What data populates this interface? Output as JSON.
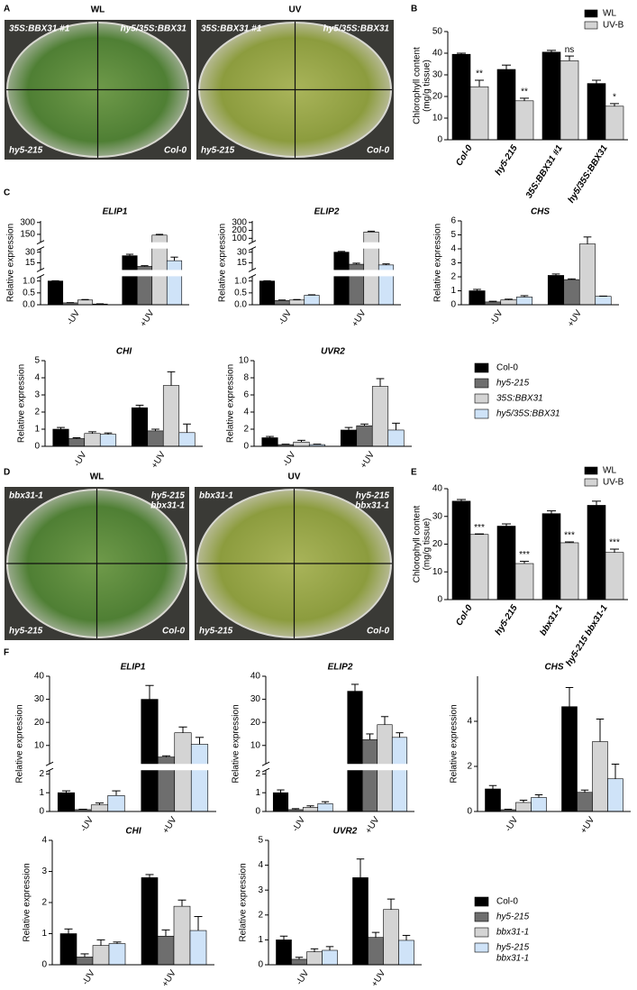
{
  "panel_labels": [
    "A",
    "B",
    "C",
    "D",
    "E",
    "F"
  ],
  "photos": [
    {
      "plates": [
        {
          "title": "WL",
          "quadrants": [
            "35S:BBX31 #1",
            "hy5/35S:BBX31",
            "hy5-215",
            "Col-0"
          ]
        },
        {
          "title": "UV",
          "quadrants": [
            "35S:BBX31 #1",
            "hy5/35S:BBX31",
            "hy5-215",
            "Col-0"
          ]
        }
      ]
    },
    {
      "plates": [
        {
          "title": "WL",
          "quadrants": [
            "bbx31-1",
            [
              "hy5-215",
              "bbx31-1"
            ],
            "hy5-215",
            "Col-0"
          ]
        },
        {
          "title": "UV",
          "quadrants": [
            "bbx31-1",
            [
              "hy5-215",
              "bbx31-1"
            ],
            "hy5-215",
            "Col-0"
          ]
        }
      ]
    }
  ],
  "chart_data": [
    {
      "type": "bar",
      "y_label": [
        "Chlorophyll content",
        "(mg/g tissue)"
      ],
      "categories": [
        "Col-0",
        "hy5-215",
        "35S:BBX31 #1",
        "hy5/35S:BBX31"
      ],
      "ylim": [
        0,
        50
      ],
      "yticks": [
        0,
        10,
        20,
        30,
        40,
        50
      ],
      "series": [
        {
          "name": "WL",
          "color": "#000000",
          "values": [
            39.5,
            32.5,
            40.5,
            26
          ],
          "errors": [
            0.5,
            2,
            0.8,
            1.5
          ]
        },
        {
          "name": "UV-B",
          "color": "#d4d4d4",
          "values": [
            24.5,
            18,
            36.5,
            15.5
          ],
          "errors": [
            3,
            1.2,
            2.2,
            1.2
          ],
          "annotations": [
            "**",
            "**",
            "ns",
            "*"
          ]
        }
      ]
    },
    {
      "type": "bar",
      "title": "ELIP1",
      "y_label": "Relative expression",
      "categories": [
        "-UV",
        "+UV"
      ],
      "axis_segments": [
        {
          "ylim": [
            0,
            1.2
          ],
          "yticks": [
            {
              "value": 0,
              "label": "0.0"
            },
            {
              "value": 0.5,
              "label": "0.5"
            },
            {
              "value": 1,
              "label": "1.0"
            }
          ]
        },
        {
          "ylim": [
            5,
            35
          ],
          "yticks": [
            15,
            30
          ]
        },
        {
          "ylim": [
            50,
            320
          ],
          "yticks": [
            150,
            300
          ]
        }
      ],
      "series": [
        {
          "color": "#000000",
          "values": [
            1.0,
            25
          ],
          "errors": [
            0.01,
            2
          ]
        },
        {
          "color": "#6e6e6e",
          "values": [
            0.08,
            10
          ],
          "errors": [
            0.01,
            1
          ]
        },
        {
          "color": "#d4d4d4",
          "values": [
            0.2,
            140
          ],
          "errors": [
            0.02,
            10
          ]
        },
        {
          "color": "#cfe3f8",
          "values": [
            0.03,
            18
          ],
          "errors": [
            0.01,
            5
          ]
        }
      ]
    },
    {
      "type": "bar",
      "title": "ELIP2",
      "y_label": "Relative expression",
      "categories": [
        "-UV",
        "+UV"
      ],
      "axis_segments": [
        {
          "ylim": [
            0,
            1.2
          ],
          "yticks": [
            {
              "value": 0,
              "label": "0.0"
            },
            {
              "value": 0.5,
              "label": "0.5"
            },
            {
              "value": 1,
              "label": "1.0"
            }
          ]
        },
        {
          "ylim": [
            5,
            35
          ],
          "yticks": [
            15,
            30
          ]
        },
        {
          "ylim": [
            50,
            320
          ],
          "yticks": [
            100,
            200,
            300
          ]
        }
      ],
      "series": [
        {
          "color": "#000000",
          "values": [
            1.0,
            30
          ],
          "errors": [
            0.01,
            1
          ]
        },
        {
          "color": "#6e6e6e",
          "values": [
            0.18,
            13
          ],
          "errors": [
            0.02,
            1.5
          ]
        },
        {
          "color": "#d4d4d4",
          "values": [
            0.2,
            180
          ],
          "errors": [
            0.02,
            10
          ]
        },
        {
          "color": "#cfe3f8",
          "values": [
            0.4,
            12
          ],
          "errors": [
            0.02,
            1.5
          ]
        }
      ]
    },
    {
      "type": "bar",
      "title": "CHS",
      "y_label": "Relative expression",
      "categories": [
        "-UV",
        "+UV"
      ],
      "ylim": [
        0,
        6
      ],
      "yticks": [
        0,
        1,
        2,
        3,
        4,
        5,
        6
      ],
      "series": [
        {
          "color": "#000000",
          "values": [
            1.0,
            2.1
          ],
          "errors": [
            0.1,
            0.1
          ]
        },
        {
          "color": "#6e6e6e",
          "values": [
            0.2,
            1.8
          ],
          "errors": [
            0.05,
            0.05
          ]
        },
        {
          "color": "#d4d4d4",
          "values": [
            0.35,
            4.35
          ],
          "errors": [
            0.05,
            0.5
          ]
        },
        {
          "color": "#cfe3f8",
          "values": [
            0.55,
            0.6
          ],
          "errors": [
            0.1,
            0.02
          ]
        }
      ]
    },
    {
      "type": "bar",
      "title": "CHI",
      "y_label": "Relative expression",
      "categories": [
        "-UV",
        "+UV"
      ],
      "ylim": [
        0,
        5
      ],
      "yticks": [
        0,
        1,
        2,
        3,
        4,
        5
      ],
      "series": [
        {
          "color": "#000000",
          "values": [
            1.0,
            2.25
          ],
          "errors": [
            0.1,
            0.15
          ]
        },
        {
          "color": "#6e6e6e",
          "values": [
            0.45,
            0.9
          ],
          "errors": [
            0.05,
            0.1
          ]
        },
        {
          "color": "#d4d4d4",
          "values": [
            0.75,
            3.55
          ],
          "errors": [
            0.1,
            0.8
          ]
        },
        {
          "color": "#cfe3f8",
          "values": [
            0.7,
            0.8
          ],
          "errors": [
            0.08,
            0.5
          ]
        }
      ]
    },
    {
      "type": "bar",
      "title": "UVR2",
      "y_label": "Relative expression",
      "categories": [
        "-UV",
        "+UV"
      ],
      "ylim": [
        0,
        10
      ],
      "yticks": [
        0,
        2,
        4,
        6,
        8,
        10
      ],
      "series": [
        {
          "color": "#000000",
          "values": [
            1.0,
            1.9
          ],
          "errors": [
            0.15,
            0.3
          ]
        },
        {
          "color": "#6e6e6e",
          "values": [
            0.2,
            2.4
          ],
          "errors": [
            0.05,
            0.2
          ]
        },
        {
          "color": "#d4d4d4",
          "values": [
            0.5,
            7.0
          ],
          "errors": [
            0.2,
            0.9
          ]
        },
        {
          "color": "#cfe3f8",
          "values": [
            0.2,
            1.9
          ],
          "errors": [
            0.05,
            0.8
          ]
        }
      ]
    },
    {
      "type": "bar",
      "y_label": [
        "Chlorophyll content",
        "(mg/g tissue)"
      ],
      "categories": [
        "Col-0",
        "hy5-215",
        "bbx31-1",
        "hy5-215 bbx31-1"
      ],
      "ylim": [
        0,
        40
      ],
      "yticks": [
        0,
        10,
        20,
        30,
        40
      ],
      "series": [
        {
          "name": "WL",
          "color": "#000000",
          "values": [
            35.5,
            26.5,
            31,
            34
          ],
          "errors": [
            0.6,
            0.8,
            1,
            1.5
          ]
        },
        {
          "name": "UV-B",
          "color": "#d4d4d4",
          "values": [
            23.5,
            13,
            20.5,
            17
          ],
          "errors": [
            0.2,
            0.8,
            0.3,
            1.2
          ],
          "annotations": [
            "***",
            "***",
            "***",
            "***"
          ]
        }
      ]
    },
    {
      "type": "bar",
      "title": "ELIP1",
      "y_label": "Relative expression",
      "categories": [
        "-UV",
        "+UV"
      ],
      "axis_segments": [
        {
          "ylim": [
            0,
            2.2
          ],
          "yticks": [
            0,
            1,
            2
          ]
        },
        {
          "ylim": [
            2,
            40
          ],
          "yticks": [
            10,
            20,
            30,
            40
          ]
        }
      ],
      "series": [
        {
          "color": "#000000",
          "values": [
            1.0,
            30
          ],
          "errors": [
            0.1,
            6
          ]
        },
        {
          "color": "#6e6e6e",
          "values": [
            0.1,
            5
          ],
          "errors": [
            0.02,
            0.5
          ]
        },
        {
          "color": "#d4d4d4",
          "values": [
            0.35,
            15.5
          ],
          "errors": [
            0.1,
            2.5
          ]
        },
        {
          "color": "#cfe3f8",
          "values": [
            0.85,
            10.5
          ],
          "errors": [
            0.25,
            3
          ]
        }
      ]
    },
    {
      "type": "bar",
      "title": "ELIP2",
      "y_label": "Relative expression",
      "categories": [
        "-UV",
        "+UV"
      ],
      "axis_segments": [
        {
          "ylim": [
            0,
            2.2
          ],
          "yticks": [
            0,
            1,
            2
          ]
        },
        {
          "ylim": [
            2,
            40
          ],
          "yticks": [
            10,
            20,
            30,
            40
          ]
        }
      ],
      "series": [
        {
          "color": "#000000",
          "values": [
            1.0,
            33.5
          ],
          "errors": [
            0.15,
            3
          ]
        },
        {
          "color": "#6e6e6e",
          "values": [
            0.1,
            12.5
          ],
          "errors": [
            0.05,
            2.5
          ]
        },
        {
          "color": "#d4d4d4",
          "values": [
            0.22,
            19
          ],
          "errors": [
            0.08,
            3.5
          ]
        },
        {
          "color": "#cfe3f8",
          "values": [
            0.42,
            13.5
          ],
          "errors": [
            0.1,
            2
          ]
        }
      ]
    },
    {
      "type": "bar",
      "title": "CHS",
      "y_label": "Relative expression",
      "categories": [
        "-UV",
        "+UV"
      ],
      "ylim": [
        0,
        6
      ],
      "yticks": [
        0,
        2,
        4
      ],
      "series": [
        {
          "color": "#000000",
          "values": [
            1.0,
            4.65
          ],
          "errors": [
            0.15,
            0.85
          ]
        },
        {
          "color": "#6e6e6e",
          "values": [
            0.08,
            0.85
          ],
          "errors": [
            0.02,
            0.1
          ]
        },
        {
          "color": "#d4d4d4",
          "values": [
            0.4,
            3.1
          ],
          "errors": [
            0.1,
            1.0
          ]
        },
        {
          "color": "#cfe3f8",
          "values": [
            0.62,
            1.45
          ],
          "errors": [
            0.12,
            0.65
          ]
        }
      ]
    },
    {
      "type": "bar",
      "title": "CHI",
      "y_label": "Relative expression",
      "categories": [
        "-UV",
        "+UV"
      ],
      "ylim": [
        0,
        4
      ],
      "yticks": [
        0,
        1,
        2,
        3,
        4
      ],
      "series": [
        {
          "color": "#000000",
          "values": [
            1.0,
            2.8
          ],
          "errors": [
            0.15,
            0.1
          ]
        },
        {
          "color": "#6e6e6e",
          "values": [
            0.25,
            0.92
          ],
          "errors": [
            0.1,
            0.2
          ]
        },
        {
          "color": "#d4d4d4",
          "values": [
            0.62,
            1.88
          ],
          "errors": [
            0.18,
            0.2
          ]
        },
        {
          "color": "#cfe3f8",
          "values": [
            0.68,
            1.1
          ],
          "errors": [
            0.05,
            0.45
          ]
        }
      ]
    },
    {
      "type": "bar",
      "title": "UVR2",
      "y_label": "Relative expression",
      "categories": [
        "-UV",
        "+UV"
      ],
      "ylim": [
        0,
        5
      ],
      "yticks": [
        0,
        1,
        2,
        3,
        4,
        5
      ],
      "series": [
        {
          "color": "#000000",
          "values": [
            1.0,
            3.5
          ],
          "errors": [
            0.15,
            0.75
          ]
        },
        {
          "color": "#6e6e6e",
          "values": [
            0.22,
            1.1
          ],
          "errors": [
            0.08,
            0.2
          ]
        },
        {
          "color": "#d4d4d4",
          "values": [
            0.52,
            2.22
          ],
          "errors": [
            0.12,
            0.42
          ]
        },
        {
          "color": "#cfe3f8",
          "values": [
            0.58,
            0.98
          ],
          "errors": [
            0.15,
            0.2
          ]
        }
      ]
    }
  ],
  "legends": [
    {
      "entries": [
        {
          "name": "Col-0",
          "color": "#000000"
        },
        {
          "name": "hy5-215",
          "color": "#6e6e6e"
        },
        {
          "name": "35S:BBX31",
          "color": "#d4d4d4"
        },
        {
          "name": "hy5/35S:BBX31",
          "color": "#cfe3f8"
        }
      ]
    },
    {
      "entries": [
        {
          "name": "Col-0",
          "color": "#000000"
        },
        {
          "name": "hy5-215",
          "color": "#6e6e6e"
        },
        {
          "name": "bbx31-1",
          "color": "#d4d4d4"
        },
        {
          "name": [
            "hy5-215",
            "bbx31-1"
          ],
          "color": "#cfe3f8"
        }
      ]
    }
  ]
}
